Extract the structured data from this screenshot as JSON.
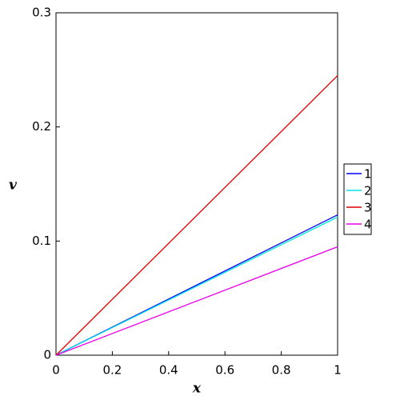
{
  "chart_data": {
    "type": "line",
    "x_label": "x",
    "y_label": "v",
    "x": [
      0,
      1
    ],
    "series": [
      {
        "name": "1",
        "color": "#0000ff",
        "values": [
          0,
          0.123
        ]
      },
      {
        "name": "2",
        "color": "#00e5e5",
        "values": [
          0,
          0.121
        ]
      },
      {
        "name": "3",
        "color": "#e00000",
        "values": [
          0,
          0.245
        ]
      },
      {
        "name": "4",
        "color": "#e800e8",
        "values": [
          0,
          0.095
        ]
      }
    ],
    "xlim": [
      0,
      1
    ],
    "xticks": [
      0,
      0.2,
      0.4,
      0.6,
      0.8,
      1
    ],
    "ylim": [
      0,
      0.3
    ],
    "yticks": [
      0,
      0.1,
      0.2,
      0.3
    ],
    "legend": "right"
  }
}
